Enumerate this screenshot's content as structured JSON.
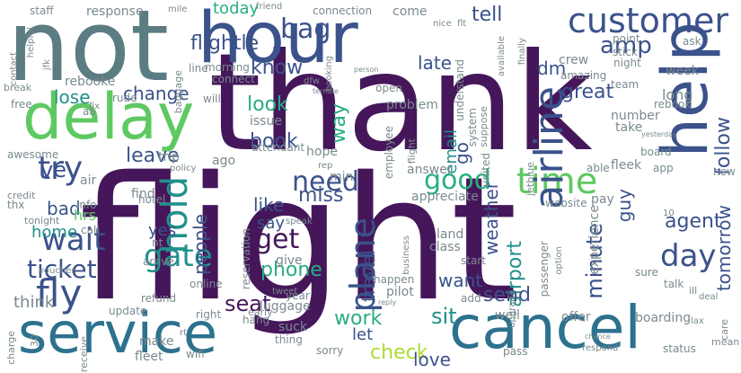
{
  "palette": {
    "dark": "#45175a",
    "purple": "#472c7a",
    "indigo": "#3b528b",
    "blue": "#2c728e",
    "teal": "#21918c",
    "green": "#28ae80",
    "lime": "#5ec962",
    "yellow": "#addc30",
    "slate": "#5b7c83",
    "grey": "#7a8a8f"
  },
  "words": [
    {
      "text": "flight",
      "color": "dark"
    },
    {
      "text": "thank",
      "color": "dark"
    },
    {
      "text": "not",
      "color": "slate"
    },
    {
      "text": "hour",
      "color": "indigo"
    },
    {
      "text": "delay",
      "color": "lime"
    },
    {
      "text": "service",
      "color": "blue"
    },
    {
      "text": "cancel",
      "color": "blue"
    },
    {
      "text": "help",
      "color": "indigo"
    },
    {
      "text": "customer",
      "color": "indigo"
    },
    {
      "text": "time",
      "color": "lime"
    },
    {
      "text": "fly",
      "color": "indigo"
    },
    {
      "text": "get",
      "color": "dark"
    },
    {
      "text": "hold",
      "color": "teal"
    },
    {
      "text": "wait",
      "color": "indigo"
    },
    {
      "text": "gate",
      "color": "teal"
    },
    {
      "text": "need",
      "color": "indigo"
    },
    {
      "text": "try",
      "color": "indigo"
    },
    {
      "text": "airline",
      "color": "indigo"
    },
    {
      "text": "plane",
      "color": "indigo"
    },
    {
      "text": "bag",
      "color": "indigo"
    },
    {
      "text": "amp",
      "color": "indigo"
    },
    {
      "text": "day",
      "color": "indigo"
    },
    {
      "text": "good",
      "color": "green"
    },
    {
      "text": "ve",
      "color": "indigo"
    },
    {
      "text": "ticket",
      "color": "indigo"
    },
    {
      "text": "flightle",
      "color": "indigo"
    },
    {
      "text": "follow",
      "color": "indigo"
    },
    {
      "text": "check",
      "color": "yellow"
    },
    {
      "text": "sit",
      "color": "teal"
    },
    {
      "text": "work",
      "color": "green"
    },
    {
      "text": "seat",
      "color": "dark"
    },
    {
      "text": "phone",
      "color": "green"
    },
    {
      "text": "change",
      "color": "indigo"
    },
    {
      "text": "leave",
      "color": "indigo"
    },
    {
      "text": "book",
      "color": "indigo"
    },
    {
      "text": "agent",
      "color": "indigo"
    },
    {
      "text": "miss",
      "color": "indigo"
    },
    {
      "text": "tell",
      "color": "indigo"
    },
    {
      "text": "late",
      "color": "indigo"
    },
    {
      "text": "dm",
      "color": "indigo"
    },
    {
      "text": "great",
      "color": "indigo"
    },
    {
      "text": "email",
      "color": "teal"
    },
    {
      "text": "weather",
      "color": "indigo"
    },
    {
      "text": "people",
      "color": "indigo"
    },
    {
      "text": "travel",
      "color": "indigo"
    },
    {
      "text": "airport",
      "color": "teal"
    },
    {
      "text": "minute",
      "color": "indigo"
    },
    {
      "text": "like",
      "color": "indigo"
    },
    {
      "text": "look",
      "color": "green"
    },
    {
      "text": "way",
      "color": "green"
    },
    {
      "text": "lose",
      "color": "teal"
    },
    {
      "text": "today",
      "color": "green"
    },
    {
      "text": "know",
      "color": "indigo"
    },
    {
      "text": "home",
      "color": "teal"
    },
    {
      "text": "bad",
      "color": "indigo"
    },
    {
      "text": "yes",
      "color": "indigo"
    },
    {
      "text": "say",
      "color": "indigo"
    },
    {
      "text": "want",
      "color": "indigo"
    },
    {
      "text": "send",
      "color": "indigo"
    },
    {
      "text": "love",
      "color": "indigo"
    },
    {
      "text": "let",
      "color": "indigo"
    },
    {
      "text": "tomorrow",
      "color": "indigo"
    },
    {
      "text": "guy",
      "color": "indigo"
    },
    {
      "text": "go",
      "color": "indigo"
    },
    {
      "text": "hrs",
      "color": "lime"
    },
    {
      "text": "staff",
      "color": "grey"
    },
    {
      "text": "response",
      "color": "grey"
    },
    {
      "text": "mile",
      "color": "grey"
    },
    {
      "text": "connection",
      "color": "grey"
    },
    {
      "text": "come",
      "color": "grey"
    },
    {
      "text": "friend",
      "color": "grey"
    },
    {
      "text": "nice",
      "color": "grey"
    },
    {
      "text": "flt",
      "color": "grey"
    },
    {
      "text": "baggage",
      "color": "grey"
    },
    {
      "text": "line",
      "color": "grey"
    },
    {
      "text": "rude",
      "color": "grey"
    },
    {
      "text": "contact",
      "color": "grey"
    },
    {
      "text": "helpful",
      "color": "grey"
    },
    {
      "text": "jfk",
      "color": "grey"
    },
    {
      "text": "rebooke",
      "color": "grey"
    },
    {
      "text": "break",
      "color": "grey"
    },
    {
      "text": "free",
      "color": "grey"
    },
    {
      "text": "fix",
      "color": "grey"
    },
    {
      "text": "awesome",
      "color": "grey"
    },
    {
      "text": "credit",
      "color": "grey"
    },
    {
      "text": "thx",
      "color": "grey"
    },
    {
      "text": "tonight",
      "color": "grey"
    },
    {
      "text": "info",
      "color": "grey"
    },
    {
      "text": "call",
      "color": "grey"
    },
    {
      "text": "voucher",
      "color": "grey"
    },
    {
      "text": "think",
      "color": "grey"
    },
    {
      "text": "update",
      "color": "grey"
    },
    {
      "text": "30",
      "color": "grey"
    },
    {
      "text": "receive",
      "color": "grey"
    },
    {
      "text": "charge",
      "color": "grey"
    },
    {
      "text": "make",
      "color": "grey"
    },
    {
      "text": "fleet",
      "color": "grey"
    },
    {
      "text": "wifi",
      "color": "grey"
    },
    {
      "text": "rt",
      "color": "grey"
    },
    {
      "text": "right",
      "color": "grey"
    },
    {
      "text": "hang",
      "color": "grey"
    },
    {
      "text": "luggage",
      "color": "grey"
    },
    {
      "text": "suck",
      "color": "grey"
    },
    {
      "text": "thing",
      "color": "grey"
    },
    {
      "text": "sorry",
      "color": "grey"
    },
    {
      "text": "well",
      "color": "grey"
    },
    {
      "text": "offer",
      "color": "grey"
    },
    {
      "text": "pass",
      "color": "grey"
    },
    {
      "text": "status",
      "color": "grey"
    },
    {
      "text": "boarding",
      "color": "grey"
    },
    {
      "text": "lax",
      "color": "grey"
    },
    {
      "text": "mean",
      "color": "grey"
    },
    {
      "text": "respond",
      "color": "grey"
    },
    {
      "text": "chance",
      "color": "grey"
    },
    {
      "text": "care",
      "color": "grey"
    },
    {
      "text": "ill",
      "color": "grey"
    },
    {
      "text": "deal",
      "color": "grey"
    },
    {
      "text": "talk",
      "color": "grey"
    },
    {
      "text": "sure",
      "color": "grey"
    },
    {
      "text": "experience",
      "color": "grey"
    },
    {
      "text": "option",
      "color": "grey"
    },
    {
      "text": "10",
      "color": "grey"
    },
    {
      "text": "passenger",
      "color": "grey"
    },
    {
      "text": "start",
      "color": "grey"
    },
    {
      "text": "pilot",
      "color": "grey"
    },
    {
      "text": "happen",
      "color": "grey"
    },
    {
      "text": "reply",
      "color": "grey"
    },
    {
      "text": "add",
      "color": "grey"
    },
    {
      "text": "upgrade",
      "color": "grey"
    },
    {
      "text": "business",
      "color": "grey"
    },
    {
      "text": "class",
      "color": "grey"
    },
    {
      "text": "land",
      "color": "grey"
    },
    {
      "text": "reservation",
      "color": "grey"
    },
    {
      "text": "speak",
      "color": "grey"
    },
    {
      "text": "year",
      "color": "grey"
    },
    {
      "text": "early",
      "color": "grey"
    },
    {
      "text": "tweet",
      "color": "grey"
    },
    {
      "text": "give",
      "color": "grey"
    },
    {
      "text": "nt",
      "color": "grey"
    },
    {
      "text": "refund",
      "color": "grey"
    },
    {
      "text": "online",
      "color": "grey"
    },
    {
      "text": "arrive",
      "color": "grey"
    },
    {
      "text": "hotel",
      "color": "grey"
    },
    {
      "text": "air",
      "color": "grey"
    },
    {
      "text": "find",
      "color": "grey"
    },
    {
      "text": "policy",
      "color": "grey"
    },
    {
      "text": "trip",
      "color": "grey"
    },
    {
      "text": "ago",
      "color": "grey"
    },
    {
      "text": "attendant",
      "color": "grey"
    },
    {
      "text": "rep",
      "color": "grey"
    },
    {
      "text": "min",
      "color": "grey"
    },
    {
      "text": "hope",
      "color": "grey"
    },
    {
      "text": "issue",
      "color": "grey"
    },
    {
      "text": "answer",
      "color": "grey"
    },
    {
      "text": "appreciate",
      "color": "grey"
    },
    {
      "text": "website",
      "color": "grey"
    },
    {
      "text": "pay",
      "color": "grey"
    },
    {
      "text": "fleek",
      "color": "grey"
    },
    {
      "text": "able",
      "color": "grey"
    },
    {
      "text": "app",
      "color": "grey"
    },
    {
      "text": "new",
      "color": "grey"
    },
    {
      "text": "board",
      "color": "grey"
    },
    {
      "text": "take",
      "color": "grey"
    },
    {
      "text": "number",
      "color": "grey"
    },
    {
      "text": "rebook",
      "color": "grey"
    },
    {
      "text": "yesterday",
      "color": "grey"
    },
    {
      "text": "long",
      "color": "grey"
    },
    {
      "text": "team",
      "color": "grey"
    },
    {
      "text": "week",
      "color": "grey"
    },
    {
      "text": "night",
      "color": "grey"
    },
    {
      "text": "crew",
      "color": "grey"
    },
    {
      "text": "ask",
      "color": "grey"
    },
    {
      "text": "point",
      "color": "grey"
    },
    {
      "text": "stick",
      "color": "grey"
    },
    {
      "text": "amazing",
      "color": "grey"
    },
    {
      "text": "finally",
      "color": "grey"
    },
    {
      "text": "available",
      "color": "grey"
    },
    {
      "text": "understand",
      "color": "grey"
    },
    {
      "text": "booking",
      "color": "grey"
    },
    {
      "text": "person",
      "color": "grey"
    },
    {
      "text": "open",
      "color": "grey"
    },
    {
      "text": "dfw",
      "color": "grey"
    },
    {
      "text": "terrible",
      "color": "grey"
    },
    {
      "text": "problem",
      "color": "grey"
    },
    {
      "text": "system",
      "color": "grey"
    },
    {
      "text": "suppose",
      "color": "grey"
    },
    {
      "text": "employee",
      "color": "grey"
    },
    {
      "text": "united",
      "color": "grey"
    },
    {
      "text": "jetblue",
      "color": "grey"
    },
    {
      "text": "morning",
      "color": "grey"
    },
    {
      "text": "connect",
      "color": "grey"
    },
    {
      "text": "aa",
      "color": "grey"
    },
    {
      "text": "will",
      "color": "grey"
    },
    {
      "text": "flight",
      "color": "grey"
    }
  ]
}
